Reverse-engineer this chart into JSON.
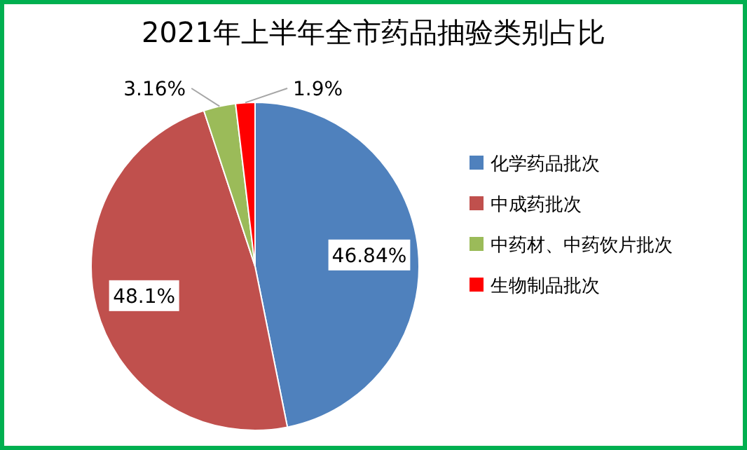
{
  "chart_data": {
    "type": "pie",
    "title": "2021年上半年全市药品抽验类别占比",
    "categories": [
      "化学药品批次",
      "中成药批次",
      "中药材、中药饮片批次",
      "生物制品批次"
    ],
    "values": [
      46.84,
      48.1,
      3.16,
      1.9
    ],
    "colors": [
      "#4f81bd",
      "#c0504d",
      "#9bbb59",
      "#ff0000"
    ],
    "value_labels": [
      "46.84%",
      "48.1%",
      "3.16%",
      "1.9%"
    ],
    "legend": "right"
  }
}
